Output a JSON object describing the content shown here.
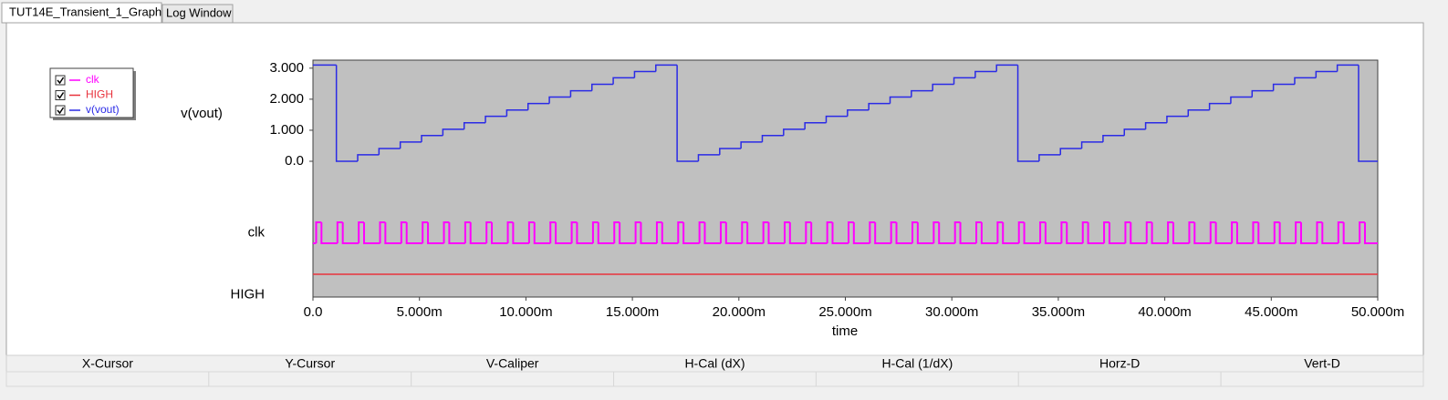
{
  "tabs": [
    "TUT14E_Transient_1_Graph",
    "Log Window"
  ],
  "chart_data": {
    "type": "line",
    "ylabel": "v(vout)",
    "xlabel": "time",
    "xlim": [
      0,
      0.05
    ],
    "xticks": [
      {
        "value": 0,
        "label": "0.0"
      },
      {
        "value": 0.005,
        "label": "5.000m"
      },
      {
        "value": 0.01,
        "label": "10.000m"
      },
      {
        "value": 0.015,
        "label": "15.000m"
      },
      {
        "value": 0.02,
        "label": "20.000m"
      },
      {
        "value": 0.025,
        "label": "25.000m"
      },
      {
        "value": 0.03,
        "label": "30.000m"
      },
      {
        "value": 0.035,
        "label": "35.000m"
      },
      {
        "value": 0.04,
        "label": "40.000m"
      },
      {
        "value": 0.045,
        "label": "45.000m"
      },
      {
        "value": 0.05,
        "label": "50.000m"
      }
    ],
    "ylim": [
      0,
      3.2
    ],
    "yticks": [
      {
        "value": 0,
        "label": "0.0"
      },
      {
        "value": 1,
        "label": "1.000"
      },
      {
        "value": 2,
        "label": "2.000"
      },
      {
        "value": 3,
        "label": "3.000"
      }
    ],
    "step": true,
    "legend": "top-left",
    "series": [
      {
        "name": "clk",
        "color": "#ff00ff",
        "digital": true,
        "x": [
          0,
          0.00015,
          0.0004,
          0.00115,
          0.0014,
          0.00215,
          0.0024,
          0.00315,
          0.0034,
          0.00415,
          0.0044,
          0.00515,
          0.0054,
          0.00615,
          0.0064,
          0.00715,
          0.0074,
          0.00815,
          0.0084,
          0.00915,
          0.0094,
          0.01015,
          0.0104,
          0.01115,
          0.0114,
          0.01215,
          0.0124,
          0.01315,
          0.0134,
          0.01415,
          0.0144,
          0.01515,
          0.0154,
          0.01615,
          0.0164,
          0.01715,
          0.0174,
          0.01815,
          0.0184,
          0.01915,
          0.0194,
          0.02015,
          0.0204,
          0.02115,
          0.0214,
          0.02215,
          0.0224,
          0.02315,
          0.0234,
          0.02415,
          0.0244,
          0.02515,
          0.0254,
          0.02615,
          0.0264,
          0.02715,
          0.0274,
          0.02815,
          0.0284,
          0.02915,
          0.0294,
          0.03015,
          0.0304,
          0.03115,
          0.0314,
          0.03215,
          0.0324,
          0.03315,
          0.0334,
          0.03415,
          0.0344,
          0.03515,
          0.0354,
          0.03615,
          0.0364,
          0.03715,
          0.0374,
          0.03815,
          0.0384,
          0.03915,
          0.0394,
          0.04015,
          0.0404,
          0.04115,
          0.0414,
          0.04215,
          0.0424,
          0.04315,
          0.0434,
          0.04415,
          0.0444,
          0.04515,
          0.0454,
          0.04615,
          0.0464,
          0.04715,
          0.0474,
          0.04815,
          0.0484,
          0.04915,
          0.0494,
          0.05
        ],
        "values": [
          0,
          1,
          0,
          1,
          0,
          1,
          0,
          1,
          0,
          1,
          0,
          1,
          0,
          1,
          0,
          1,
          0,
          1,
          0,
          1,
          0,
          1,
          0,
          1,
          0,
          1,
          0,
          1,
          0,
          1,
          0,
          1,
          0,
          1,
          0,
          1,
          0,
          1,
          0,
          1,
          0,
          1,
          0,
          1,
          0,
          1,
          0,
          1,
          0,
          1,
          0,
          1,
          0,
          1,
          0,
          1,
          0,
          1,
          0,
          1,
          0,
          1,
          0,
          1,
          0,
          1,
          0,
          1,
          0,
          1,
          0,
          1,
          0,
          1,
          0,
          1,
          0,
          1,
          0,
          1,
          0,
          1,
          0,
          1,
          0,
          1,
          0,
          1,
          0,
          1,
          0,
          1,
          0,
          1,
          0,
          1,
          0,
          1,
          0,
          1,
          0,
          0
        ]
      },
      {
        "name": "HIGH",
        "color": "#e8323c",
        "digital": true,
        "x": [
          0,
          0.05
        ],
        "values": [
          1,
          1
        ]
      },
      {
        "name": "v(vout)",
        "color": "#2a2ae6",
        "x": [
          0,
          0.0011,
          0.0021,
          0.0031,
          0.0041,
          0.0051,
          0.0061,
          0.0071,
          0.0081,
          0.0091,
          0.0101,
          0.0111,
          0.0121,
          0.0131,
          0.0141,
          0.0151,
          0.0161,
          0.0171,
          0.0181,
          0.0191,
          0.0201,
          0.0211,
          0.0221,
          0.0231,
          0.0241,
          0.0251,
          0.0261,
          0.0271,
          0.0281,
          0.0291,
          0.0301,
          0.0311,
          0.0321,
          0.0331,
          0.0341,
          0.0351,
          0.0361,
          0.0371,
          0.0381,
          0.0391,
          0.0401,
          0.0411,
          0.0421,
          0.0431,
          0.0441,
          0.0451,
          0.0461,
          0.0471,
          0.0481,
          0.0491,
          0.05
        ],
        "values": [
          3.1,
          0,
          0.21,
          0.41,
          0.62,
          0.83,
          1.03,
          1.24,
          1.45,
          1.65,
          1.86,
          2.07,
          2.27,
          2.48,
          2.69,
          2.89,
          3.1,
          0,
          0.21,
          0.41,
          0.62,
          0.83,
          1.03,
          1.24,
          1.45,
          1.65,
          1.86,
          2.07,
          2.27,
          2.48,
          2.69,
          2.89,
          3.1,
          0,
          0.21,
          0.41,
          0.62,
          0.83,
          1.03,
          1.24,
          1.45,
          1.65,
          1.86,
          2.07,
          2.27,
          2.48,
          2.69,
          2.89,
          3.1,
          0,
          0
        ]
      }
    ]
  },
  "cursor_panel": {
    "columns": [
      "X-Cursor",
      "Y-Cursor",
      "V-Caliper",
      "H-Cal (dX)",
      "H-Cal (1/dX)",
      "Horz-D",
      "Vert-D"
    ]
  }
}
